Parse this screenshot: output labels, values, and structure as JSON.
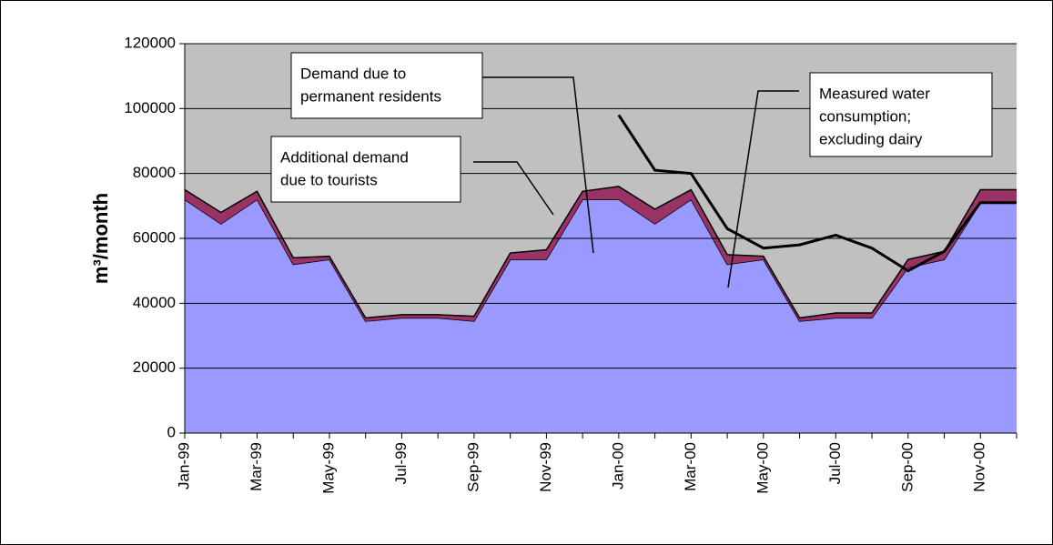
{
  "chart_data": {
    "type": "stacked-area",
    "y_label": "m³/month",
    "categories": [
      "Jan-99",
      null,
      "Mar-99",
      null,
      "May-99",
      null,
      "Jul-99",
      null,
      "Sep-99",
      null,
      "Nov-99",
      null,
      "Jan-00",
      null,
      "Mar-00",
      null,
      "May-00",
      null,
      "Jul-00",
      null,
      "Sep-00",
      null,
      "Nov-00",
      null
    ],
    "series": [
      {
        "color": "#9999ff",
        "kind": "area",
        "values": [
          72000,
          64500,
          72000,
          52000,
          53500,
          34500,
          35500,
          35500,
          34500,
          53500,
          53500,
          72000,
          72000,
          64500,
          72000,
          52000,
          53500,
          34500,
          35500,
          35500,
          51000,
          53500,
          71000,
          71000
        ]
      },
      {
        "color": "#993366",
        "kind": "area",
        "values": [
          3000,
          3500,
          2500,
          2000,
          1000,
          1000,
          1000,
          1000,
          1500,
          2000,
          3000,
          2500,
          4000,
          4500,
          3000,
          3000,
          1000,
          1000,
          1500,
          1500,
          2500,
          2500,
          4000,
          4000
        ]
      },
      {
        "color": "#000000",
        "kind": "line",
        "values": [
          null,
          null,
          null,
          null,
          null,
          null,
          null,
          null,
          null,
          null,
          null,
          null,
          98000,
          81000,
          80000,
          63000,
          57000,
          58000,
          61000,
          57000,
          50000,
          56000,
          71000,
          71000
        ]
      }
    ],
    "ylim": [
      0,
      120000
    ],
    "yticks": [
      0,
      20000,
      40000,
      60000,
      80000,
      100000,
      120000
    ],
    "grid": true,
    "plot_background": "#c0c0c0",
    "annotations": [
      {
        "lines": [
          "Demand due to",
          "permanent residents"
        ]
      },
      {
        "lines": [
          "Additional demand",
          "due to tourists"
        ]
      },
      {
        "lines": [
          "Measured water",
          "consumption;",
          "excluding dairy"
        ]
      }
    ]
  }
}
